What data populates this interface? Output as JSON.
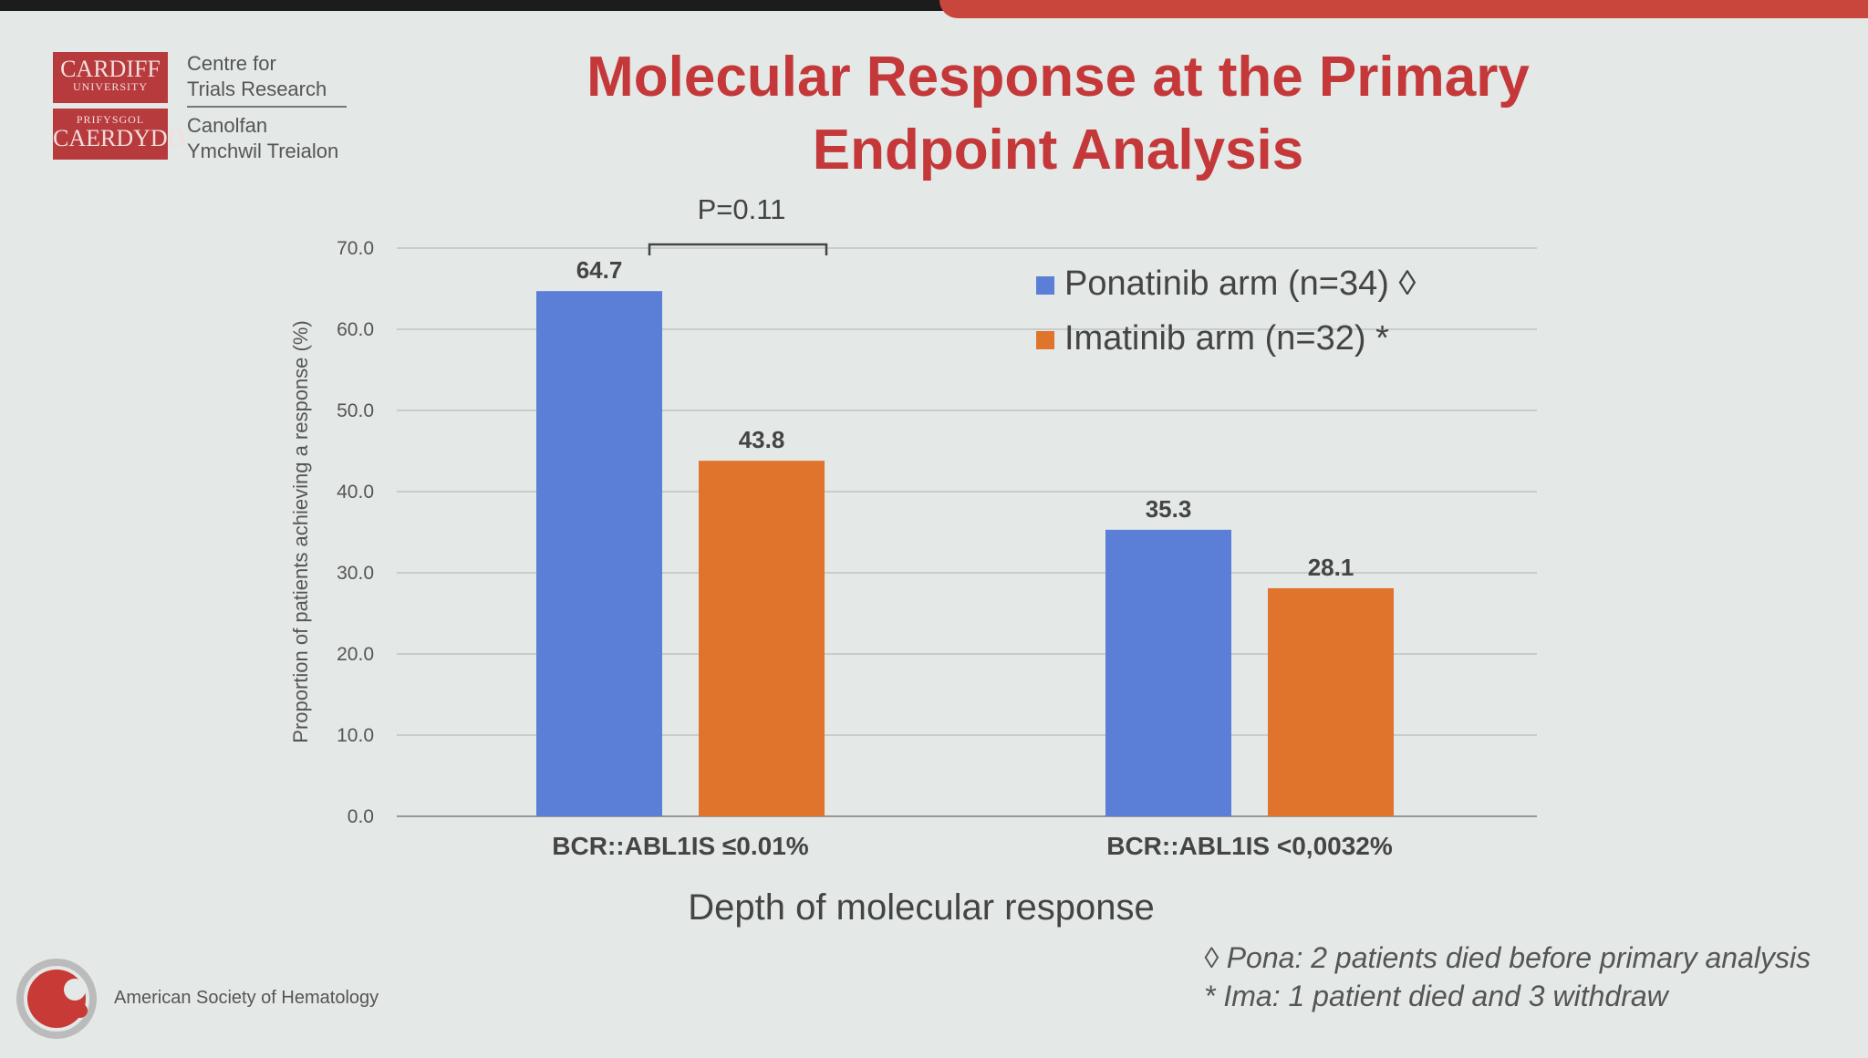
{
  "header": {
    "title_line1": "Molecular Response at the Primary",
    "title_line2": "Endpoint Analysis"
  },
  "logo": {
    "line1": "CARDIFF",
    "line2": "UNIVERSITY",
    "line3": "PRIFYSGOL",
    "line4": "CAERDYDD",
    "centre1": "Centre for",
    "centre2": "Trials Research",
    "centre3": "Canolfan",
    "centre4": "Ymchwil Treialon"
  },
  "ash": "American Society of Hematology",
  "footnotes": [
    "◊ Pona: 2 patients died before primary analysis",
    "* Ima: 1 patient died and 3 withdraw"
  ],
  "chart_data": {
    "type": "bar",
    "title": "Molecular Response at the Primary Endpoint Analysis",
    "categories": [
      "BCR::ABL1IS ≤0.01%",
      "BCR::ABL1IS <0,0032%"
    ],
    "series": [
      {
        "name": "Ponatinib arm (n=34)",
        "marker": "◊",
        "color": "#5b7fd6",
        "values": [
          64.7,
          35.3
        ],
        "labels": [
          "64.7",
          "35.3"
        ]
      },
      {
        "name": "Imatinib arm (n=32)",
        "marker": "*",
        "color": "#e0742c",
        "values": [
          43.8,
          28.1
        ],
        "labels": [
          "43.8",
          "28.1"
        ]
      }
    ],
    "xlabel": "Depth of molecular response",
    "ylabel": "Proportion of patients achieving a response (%)",
    "ylim": [
      0,
      70
    ],
    "yticks": [
      "0.0",
      "10.0",
      "20.0",
      "30.0",
      "40.0",
      "50.0",
      "60.0",
      "70.0"
    ],
    "grid": true,
    "legend": "top-right",
    "annotation": "P=0.11"
  }
}
